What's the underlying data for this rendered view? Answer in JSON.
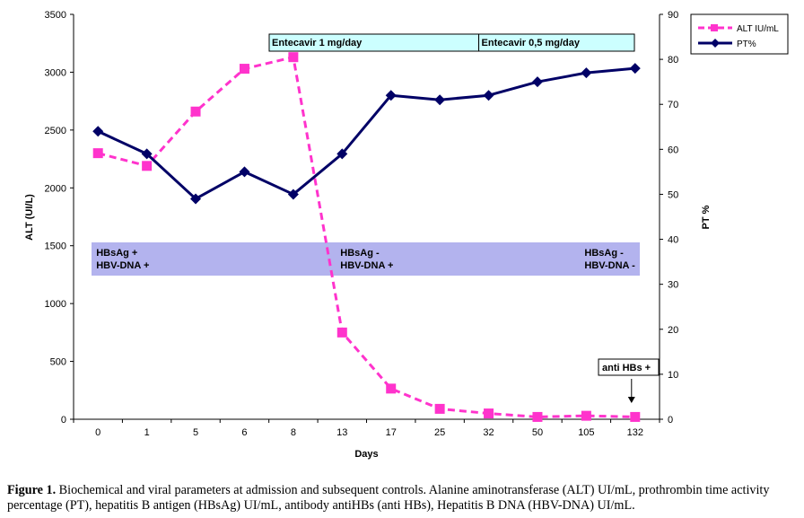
{
  "chart_data": {
    "type": "line",
    "x": [
      "0",
      "1",
      "5",
      "6",
      "8",
      "13",
      "17",
      "25",
      "32",
      "50",
      "105",
      "132"
    ],
    "xlabel": "Days",
    "ylabel": "ALT (UI/L)",
    "y2label": "PT %",
    "ylim": [
      0,
      3500
    ],
    "y2lim": [
      0,
      90
    ],
    "yticks": [
      "0",
      "500",
      "1000",
      "1500",
      "2000",
      "2500",
      "3000",
      "3500"
    ],
    "y2ticks": [
      "0",
      "10",
      "20",
      "30",
      "40",
      "50",
      "60",
      "70",
      "80",
      "90"
    ],
    "grid": false,
    "legend_position": "top-right",
    "series": [
      {
        "name": "ALT IU/mL",
        "axis": "left",
        "color": "#ff33cc",
        "values": [
          2300,
          2190,
          2660,
          3030,
          3130,
          750,
          265,
          90,
          50,
          20,
          30,
          20
        ]
      },
      {
        "name": "PT%",
        "axis": "right",
        "color": "#000066",
        "values": [
          64,
          59,
          49,
          55,
          50,
          59,
          72,
          71,
          72,
          75,
          77,
          78
        ]
      }
    ],
    "treatments": [
      {
        "label": "Entecavir 1 mg/day",
        "from": "8",
        "to": "32"
      },
      {
        "label": "Entecavir 0,5 mg/day",
        "from": "32",
        "to": "132"
      }
    ],
    "serology": [
      {
        "at": "0",
        "hbsag": "HBsAg  +",
        "hbvdna": "HBV-DNA  +"
      },
      {
        "at": "13",
        "hbsag": "HBsAg  -",
        "hbvdna": "HBV-DNA  +"
      },
      {
        "at": "105",
        "hbsag": "HBsAg  -",
        "hbvdna": "HBV-DNA  -"
      }
    ],
    "annotation": {
      "label": "anti HBs  +",
      "at": "132"
    },
    "colors": {
      "alt": "#ff33cc",
      "pt": "#000066",
      "treatment_box": "#ccffff",
      "serology_band": "#b3b3ee"
    }
  },
  "caption": {
    "label": "Figure 1.",
    "text": " Biochemical and viral parameters at admission and subsequent controls. Alanine aminotransferase (ALT) UI/mL, prothrombin time activity percentage (PT), hepatitis B antigen (HBsAg) UI/mL, antibody antiHBs (anti HBs), Hepatitis B DNA (HBV-DNA) UI/mL."
  }
}
